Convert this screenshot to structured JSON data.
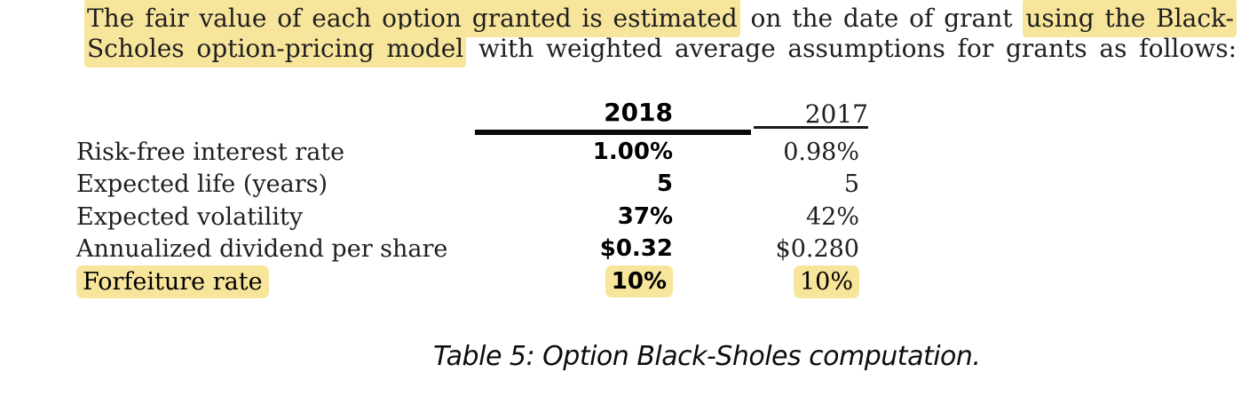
{
  "colors": {
    "background": "#ffffff",
    "highlight": "#f8e59c",
    "text": "#1f1f1f",
    "bold_text": "#000000",
    "rule_thick": "#0a0a0a",
    "rule_thin": "#1a1a1a"
  },
  "paragraph": {
    "line1": {
      "seg1_highlighted": "The fair value of each option granted is estimated",
      "seg2_plain": " on the date of grant ",
      "seg3_highlighted": "using the Black-"
    },
    "line2": {
      "seg1_highlighted": "Scholes option-pricing model",
      "seg2_plain": " with weighted average assumptions for grants as follows:"
    }
  },
  "table": {
    "columns": {
      "col_2018": "2018",
      "col_2017": "2017"
    },
    "rows": [
      {
        "label": "Risk-free interest rate",
        "y2018": "1.00%",
        "y2017": "0.98%",
        "highlighted": false
      },
      {
        "label": "Expected life (years)",
        "y2018": "5",
        "y2017": "5",
        "highlighted": false
      },
      {
        "label": "Expected volatility",
        "y2018": "37%",
        "y2017": "42%",
        "highlighted": false
      },
      {
        "label": "Annualized dividend per share",
        "y2018": "$0.32",
        "y2017": "$0.280",
        "highlighted": false
      },
      {
        "label": "Forfeiture rate",
        "y2018": "10%",
        "y2017": "10%",
        "highlighted": true
      }
    ]
  },
  "caption": "Table 5: Option Black-Sholes computation."
}
